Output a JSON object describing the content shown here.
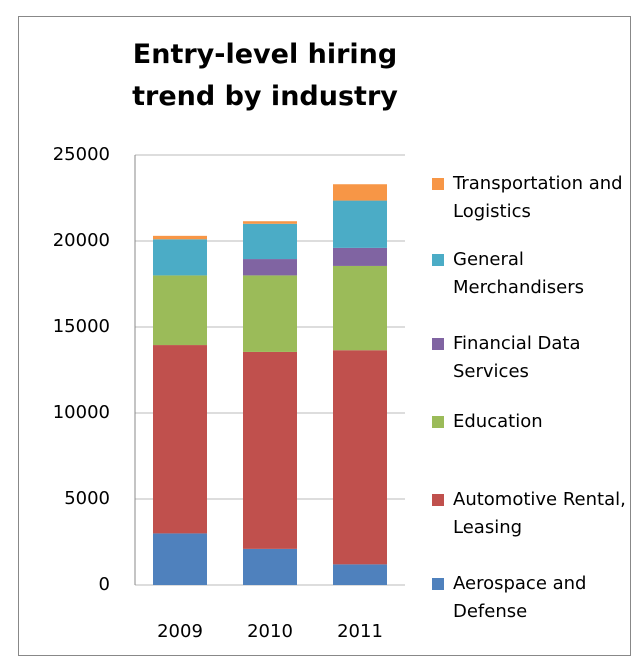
{
  "chart_data": {
    "type": "stacked_bar",
    "title": "Entry-level hiring trend by industry",
    "categories": [
      "2009",
      "2010",
      "2011"
    ],
    "series": [
      {
        "name": "Aerospace and Defense",
        "color": "#4f81bd",
        "values": [
          3000,
          2100,
          1200
        ]
      },
      {
        "name": "Automotive Rental, Leasing",
        "color": "#c0504d",
        "values": [
          10950,
          11450,
          12450
        ]
      },
      {
        "name": "Education",
        "color": "#9bbb59",
        "values": [
          4050,
          4450,
          4900
        ]
      },
      {
        "name": "Financial Data Services",
        "color": "#8064a2",
        "values": [
          0,
          950,
          1050
        ]
      },
      {
        "name": "General Merchandisers",
        "color": "#4bacc6",
        "values": [
          2100,
          2050,
          2750
        ]
      },
      {
        "name": "Transportation and Logistics",
        "color": "#f79646",
        "values": [
          200,
          150,
          950
        ]
      }
    ],
    "ylim": [
      0,
      25000
    ],
    "yticks": [
      0,
      5000,
      10000,
      15000,
      20000,
      25000
    ],
    "grid": true,
    "legend": "right"
  }
}
